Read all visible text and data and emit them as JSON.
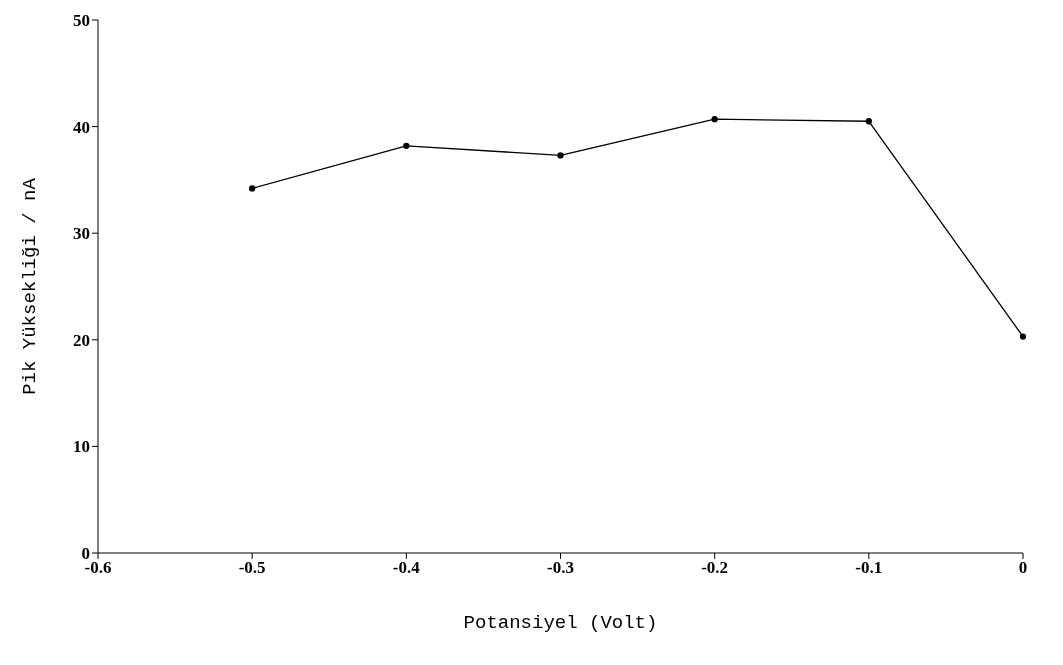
{
  "chart_data": {
    "type": "line",
    "xlabel": "Potansiyel (Volt)",
    "ylabel": "Pik Yüksekliği / nA",
    "x": [
      -0.5,
      -0.4,
      -0.3,
      -0.2,
      -0.1,
      0
    ],
    "series": [
      {
        "color": "#000000",
        "values": [
          34.2,
          38.2,
          37.3,
          40.7,
          40.5,
          20.3
        ]
      }
    ],
    "xlim": [
      -0.6,
      0
    ],
    "xticks": [
      -0.6,
      -0.5,
      -0.4,
      -0.3,
      -0.2,
      -0.1,
      0
    ],
    "ylim": [
      0,
      50
    ],
    "yticks": [
      0,
      10,
      20,
      30,
      40,
      50
    ],
    "grid": false,
    "legend": false,
    "marker": "circle",
    "line_style": "solid"
  }
}
